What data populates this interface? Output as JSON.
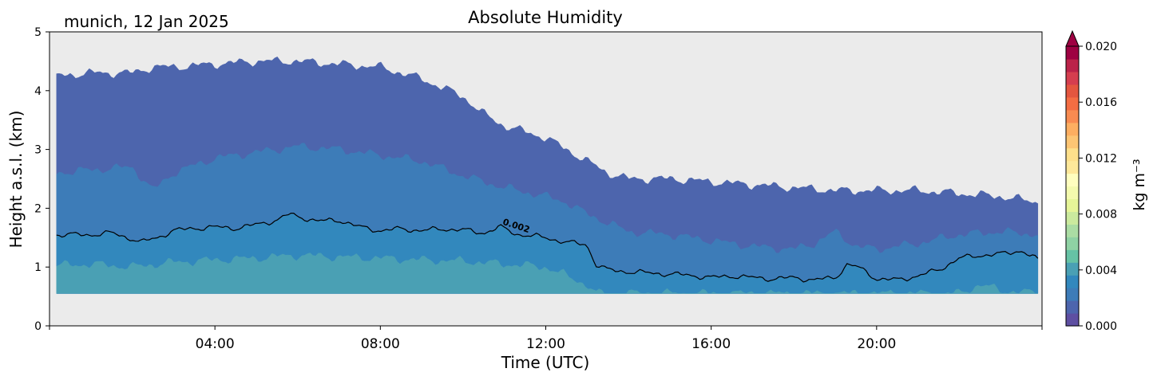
{
  "corner_label": "munich, 12 Jan 2025",
  "chart_data": {
    "type": "filled-contour",
    "title": "Absolute Humidity",
    "xlabel": "Time (UTC)",
    "ylabel": "Height a.s.l. (km)",
    "x_unit": "hours UTC",
    "xlim": [
      0,
      24
    ],
    "ylim": [
      0,
      5
    ],
    "x_ticks": [
      {
        "value": 0,
        "label": ""
      },
      {
        "value": 4,
        "label": "04:00"
      },
      {
        "value": 8,
        "label": "08:00"
      },
      {
        "value": 12,
        "label": "12:00"
      },
      {
        "value": 16,
        "label": "16:00"
      },
      {
        "value": 20,
        "label": "20:00"
      },
      {
        "value": 24,
        "label": ""
      }
    ],
    "y_ticks": [
      {
        "value": 0,
        "label": "0"
      },
      {
        "value": 1,
        "label": "1"
      },
      {
        "value": 2,
        "label": "2"
      },
      {
        "value": 3,
        "label": "3"
      },
      {
        "value": 4,
        "label": "4"
      },
      {
        "value": 5,
        "label": "5"
      }
    ],
    "data_range_x": [
      0.17,
      23.9
    ],
    "data_floor_km": 0.55,
    "no_data_color": "#ebebeb",
    "colorbar": {
      "label": "kg m⁻³",
      "range": [
        0,
        0.02
      ],
      "extend": "max",
      "ticks": [
        {
          "value": 0.0,
          "label": "0.000"
        },
        {
          "value": 0.004,
          "label": "0.004"
        },
        {
          "value": 0.008,
          "label": "0.008"
        },
        {
          "value": 0.012,
          "label": "0.012"
        },
        {
          "value": 0.016,
          "label": "0.016"
        },
        {
          "value": 0.02,
          "label": "0.020"
        }
      ],
      "colors": [
        "#5e4fa2",
        "#4d65ad",
        "#3d7cb8",
        "#3288bd",
        "#4aa0b4",
        "#66c2a5",
        "#8fd2a4",
        "#abdda4",
        "#cbea9e",
        "#e6f598",
        "#f4faae",
        "#fffebf",
        "#fee89a",
        "#fee08b",
        "#fdc574",
        "#fdae61",
        "#f88b51",
        "#f46d43",
        "#e4563f",
        "#d53e4f",
        "#bb2349",
        "#9e0142"
      ],
      "extend_color": "#9e0142"
    },
    "levels": [
      {
        "lower": 0.0,
        "upper": 0.001,
        "color": "#5e4fa2"
      },
      {
        "lower": 0.001,
        "upper": 0.0015,
        "color": "#4d65ad"
      },
      {
        "lower": 0.0015,
        "upper": 0.002,
        "color": "#3d7cb8"
      },
      {
        "lower": 0.002,
        "upper": 0.003,
        "color": "#3288bd"
      },
      {
        "lower": 0.003,
        "upper": 0.004,
        "color": "#4aa0b4"
      }
    ],
    "boundaries": [
      {
        "name": "0.001 boundary",
        "x": [
          0.17,
          1,
          2,
          2.5,
          3,
          4,
          5,
          6,
          7,
          8,
          9,
          10,
          10.5,
          11,
          12,
          12.5,
          13,
          13.5,
          14,
          15,
          16,
          17,
          18,
          19,
          20,
          21,
          22,
          23,
          23.9
        ],
        "y": [
          4.25,
          4.3,
          4.3,
          4.4,
          4.4,
          4.45,
          4.5,
          4.5,
          4.45,
          4.4,
          4.2,
          3.9,
          3.6,
          3.4,
          3.2,
          3.0,
          2.8,
          2.6,
          2.5,
          2.5,
          2.45,
          2.4,
          2.35,
          2.3,
          2.3,
          2.3,
          2.25,
          2.2,
          2.1
        ]
      },
      {
        "name": "0.0015 boundary",
        "x": [
          0.17,
          1,
          2,
          2.5,
          3,
          4,
          5,
          6,
          7,
          8,
          9,
          10,
          11,
          12,
          12.5,
          13,
          13.5,
          14,
          15,
          16,
          17,
          18,
          18.5,
          19,
          19.5,
          20,
          21,
          22,
          23,
          23.9
        ],
        "y": [
          2.6,
          2.65,
          2.7,
          2.3,
          2.6,
          2.85,
          2.95,
          3.05,
          3.0,
          2.9,
          2.8,
          2.55,
          2.35,
          2.2,
          2.1,
          1.9,
          1.75,
          1.6,
          1.55,
          1.45,
          1.35,
          1.3,
          1.4,
          1.6,
          1.35,
          1.3,
          1.4,
          1.55,
          1.6,
          1.55
        ]
      },
      {
        "name": "0.002 contour",
        "x": [
          0.17,
          1,
          1.5,
          2,
          2.2,
          2.6,
          3,
          3.5,
          4,
          4.5,
          5,
          5.5,
          5.8,
          6,
          6.5,
          7,
          7.5,
          8,
          8.5,
          9,
          9.5,
          10,
          10.5,
          10.9,
          11.3,
          12,
          12.5,
          13,
          13.2,
          13.5,
          14,
          14.5,
          15,
          15.5,
          16,
          16.5,
          17,
          17.5,
          18,
          18.5,
          19,
          19.3,
          19.6,
          20,
          20.5,
          21,
          21.5,
          22,
          22.5,
          23,
          23.5,
          23.9
        ],
        "y": [
          1.55,
          1.55,
          1.58,
          1.48,
          1.42,
          1.5,
          1.62,
          1.66,
          1.68,
          1.66,
          1.72,
          1.8,
          1.9,
          1.86,
          1.78,
          1.8,
          1.68,
          1.62,
          1.65,
          1.62,
          1.65,
          1.63,
          1.58,
          1.68,
          1.56,
          1.5,
          1.42,
          1.38,
          1.05,
          0.95,
          0.92,
          0.9,
          0.88,
          0.86,
          0.82,
          0.85,
          0.82,
          0.8,
          0.82,
          0.78,
          0.82,
          1.05,
          0.98,
          0.8,
          0.78,
          0.85,
          0.95,
          1.15,
          1.2,
          1.22,
          1.28,
          1.12
        ]
      },
      {
        "name": "0.003 boundary",
        "x": [
          0.17,
          1,
          2,
          3,
          4,
          5,
          6,
          7,
          8,
          9,
          10,
          11,
          12,
          12.5,
          13,
          13.2,
          13.5,
          14,
          15,
          16,
          17,
          18,
          19,
          19.5,
          20,
          21,
          22,
          22.5,
          23,
          23.9
        ],
        "y": [
          1.02,
          1.05,
          1.0,
          1.08,
          1.12,
          1.15,
          1.2,
          1.17,
          1.15,
          1.12,
          1.1,
          1.05,
          1.0,
          0.85,
          0.7,
          0.55,
          0.55,
          0.55,
          0.55,
          0.55,
          0.55,
          0.55,
          0.55,
          0.55,
          0.55,
          0.55,
          0.55,
          0.7,
          0.6,
          0.55
        ]
      }
    ],
    "contour_label": {
      "text": "0.002",
      "x": 11.1,
      "y": 1.7
    }
  }
}
